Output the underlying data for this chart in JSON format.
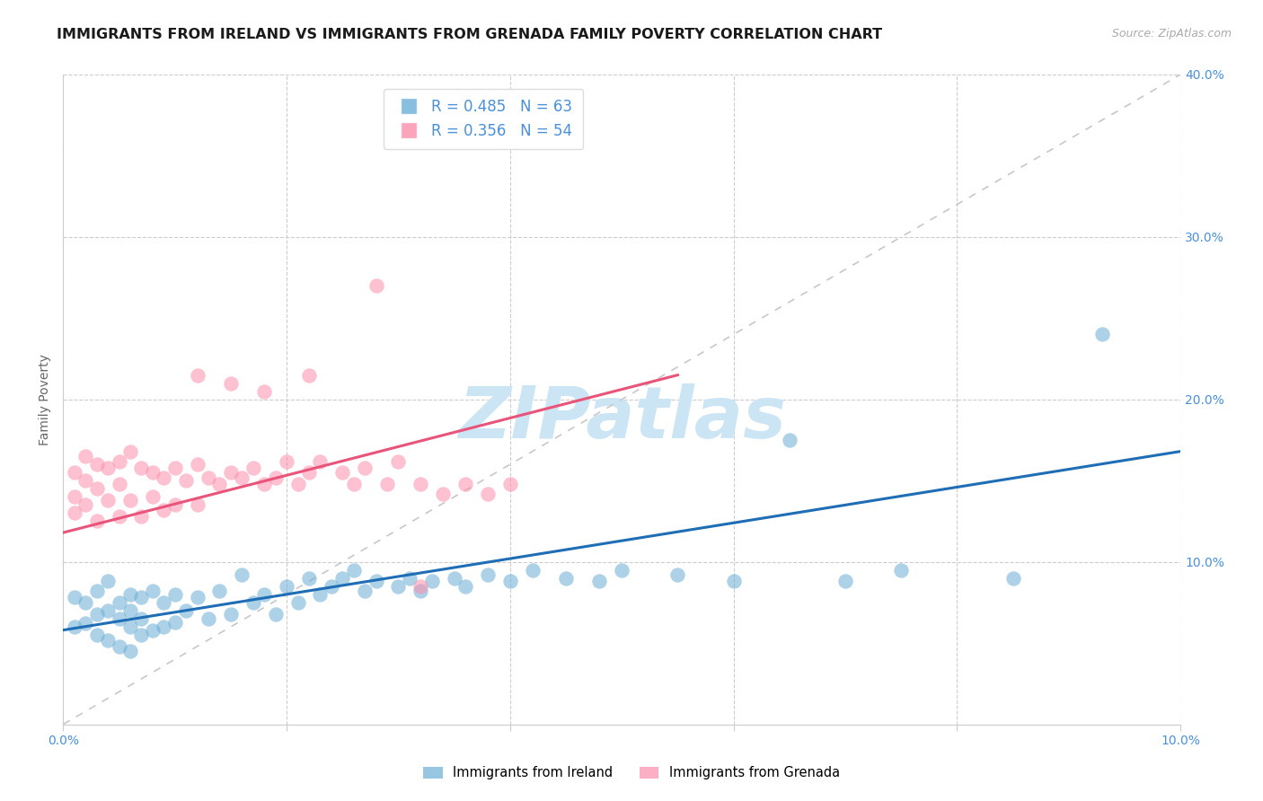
{
  "title": "IMMIGRANTS FROM IRELAND VS IMMIGRANTS FROM GRENADA FAMILY POVERTY CORRELATION CHART",
  "source": "Source: ZipAtlas.com",
  "ylabel": "Family Poverty",
  "xlim": [
    0.0,
    0.1
  ],
  "ylim": [
    0.0,
    0.4
  ],
  "ireland_R": 0.485,
  "ireland_N": 63,
  "grenada_R": 0.356,
  "grenada_N": 54,
  "ireland_color": "#6baed6",
  "grenada_color": "#fc8eac",
  "ireland_line_color": "#1f6eb5",
  "grenada_line_color": "#e8547a",
  "diagonal_color": "#c8c8c8",
  "background_color": "#ffffff",
  "ireland_scatter_x": [
    0.001,
    0.001,
    0.002,
    0.002,
    0.003,
    0.003,
    0.003,
    0.004,
    0.004,
    0.004,
    0.005,
    0.005,
    0.005,
    0.006,
    0.006,
    0.006,
    0.006,
    0.007,
    0.007,
    0.007,
    0.008,
    0.008,
    0.009,
    0.009,
    0.01,
    0.01,
    0.011,
    0.012,
    0.013,
    0.014,
    0.015,
    0.016,
    0.017,
    0.018,
    0.019,
    0.02,
    0.021,
    0.022,
    0.023,
    0.024,
    0.025,
    0.026,
    0.027,
    0.028,
    0.03,
    0.031,
    0.032,
    0.033,
    0.035,
    0.036,
    0.038,
    0.04,
    0.042,
    0.045,
    0.048,
    0.05,
    0.055,
    0.06,
    0.065,
    0.07,
    0.075,
    0.085,
    0.093
  ],
  "ireland_scatter_y": [
    0.078,
    0.06,
    0.075,
    0.062,
    0.082,
    0.068,
    0.055,
    0.088,
    0.07,
    0.052,
    0.075,
    0.065,
    0.048,
    0.08,
    0.07,
    0.06,
    0.045,
    0.078,
    0.065,
    0.055,
    0.082,
    0.058,
    0.075,
    0.06,
    0.08,
    0.063,
    0.07,
    0.078,
    0.065,
    0.082,
    0.068,
    0.092,
    0.075,
    0.08,
    0.068,
    0.085,
    0.075,
    0.09,
    0.08,
    0.085,
    0.09,
    0.095,
    0.082,
    0.088,
    0.085,
    0.09,
    0.082,
    0.088,
    0.09,
    0.085,
    0.092,
    0.088,
    0.095,
    0.09,
    0.088,
    0.095,
    0.092,
    0.088,
    0.175,
    0.088,
    0.095,
    0.09,
    0.24
  ],
  "grenada_scatter_x": [
    0.001,
    0.001,
    0.001,
    0.002,
    0.002,
    0.002,
    0.003,
    0.003,
    0.003,
    0.004,
    0.004,
    0.005,
    0.005,
    0.005,
    0.006,
    0.006,
    0.007,
    0.007,
    0.008,
    0.008,
    0.009,
    0.009,
    0.01,
    0.01,
    0.011,
    0.012,
    0.012,
    0.013,
    0.014,
    0.015,
    0.016,
    0.017,
    0.018,
    0.019,
    0.02,
    0.021,
    0.022,
    0.023,
    0.025,
    0.026,
    0.027,
    0.029,
    0.03,
    0.032,
    0.034,
    0.036,
    0.038,
    0.04,
    0.012,
    0.015,
    0.018,
    0.022,
    0.028,
    0.032
  ],
  "grenada_scatter_y": [
    0.155,
    0.14,
    0.13,
    0.165,
    0.15,
    0.135,
    0.16,
    0.145,
    0.125,
    0.158,
    0.138,
    0.162,
    0.148,
    0.128,
    0.168,
    0.138,
    0.158,
    0.128,
    0.155,
    0.14,
    0.152,
    0.132,
    0.158,
    0.135,
    0.15,
    0.16,
    0.135,
    0.152,
    0.148,
    0.155,
    0.152,
    0.158,
    0.148,
    0.152,
    0.162,
    0.148,
    0.155,
    0.162,
    0.155,
    0.148,
    0.158,
    0.148,
    0.162,
    0.148,
    0.142,
    0.148,
    0.142,
    0.148,
    0.215,
    0.21,
    0.205,
    0.215,
    0.27,
    0.085
  ],
  "ireland_line_x0": 0.0,
  "ireland_line_y0": 0.058,
  "ireland_line_x1": 0.1,
  "ireland_line_y1": 0.168,
  "grenada_line_x0": 0.0,
  "grenada_line_y0": 0.118,
  "grenada_line_x1": 0.055,
  "grenada_line_y1": 0.215,
  "grid_color": "#cccccc",
  "title_fontsize": 11.5,
  "label_fontsize": 10,
  "tick_fontsize": 10,
  "legend_fontsize": 12,
  "watermark": "ZIPatlas",
  "watermark_color": "#cce5f5",
  "watermark_fontsize": 58
}
